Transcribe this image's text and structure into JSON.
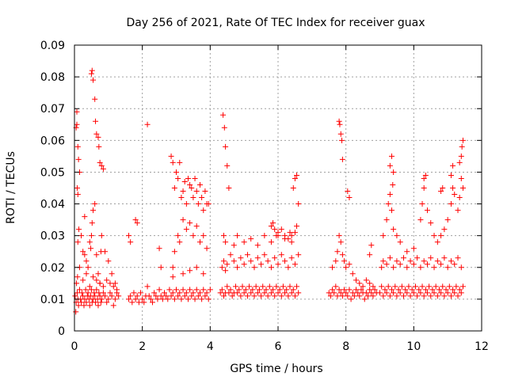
{
  "chart_data": {
    "type": "scatter",
    "title": "Day 256 of 2021, Rate Of TEC Index for receiver guax",
    "xlabel": "GPS time / hours",
    "ylabel": "ROTI / TECUs",
    "xlim": [
      0,
      12
    ],
    "ylim": [
      0,
      0.09
    ],
    "xticks": [
      "0",
      "2",
      "4",
      "6",
      "8",
      "10",
      "12"
    ],
    "xtick_values": [
      0,
      2,
      4,
      6,
      8,
      10,
      12
    ],
    "yticks": [
      "0",
      "0.01",
      "0.02",
      "0.03",
      "0.04",
      "0.05",
      "0.06",
      "0.07",
      "0.08",
      "0.09"
    ],
    "ytick_values": [
      0,
      0.01,
      0.02,
      0.03,
      0.04,
      0.05,
      0.06,
      0.07,
      0.08,
      0.09
    ],
    "grid": true,
    "marker": "+",
    "marker_color": "#ff0000",
    "series": [
      {
        "name": "ROTI",
        "x": [
          0.02,
          0.05,
          0.08,
          0.1,
          0.12,
          0.15,
          0.18,
          0.2,
          0.22,
          0.25,
          0.28,
          0.3,
          0.33,
          0.35,
          0.38,
          0.4,
          0.43,
          0.45,
          0.48,
          0.5,
          0.52,
          0.55,
          0.58,
          0.6,
          0.62,
          0.65,
          0.68,
          0.7,
          0.72,
          0.75,
          0.78,
          0.8,
          0.85,
          0.9,
          0.95,
          1.0,
          1.05,
          1.1,
          1.15,
          1.2,
          1.25,
          1.3,
          0.05,
          0.07,
          0.1,
          0.12,
          0.15,
          0.08,
          0.1,
          0.13,
          0.2,
          0.25,
          0.3,
          0.35,
          0.4,
          0.45,
          0.5,
          0.52,
          0.55,
          0.6,
          0.62,
          0.65,
          0.7,
          0.72,
          0.75,
          0.8,
          0.85,
          0.9,
          1.0,
          1.1,
          1.2,
          0.07,
          0.1,
          0.3,
          0.48,
          0.5,
          0.52,
          0.55,
          0.6,
          0.65,
          0.7,
          0.75,
          0.78,
          0.8,
          0.04,
          0.06,
          0.09,
          0.15,
          0.25,
          0.35,
          0.45,
          0.55,
          0.65,
          0.75,
          0.85,
          0.95,
          1.05,
          1.15,
          1.25,
          1.6,
          1.65,
          1.7,
          1.75,
          1.8,
          1.85,
          1.9,
          1.95,
          2.0,
          2.05,
          2.1,
          1.6,
          1.65,
          1.8,
          1.85,
          2.15,
          2.2,
          2.25,
          2.3,
          2.35,
          2.4,
          2.45,
          2.5,
          2.55,
          2.6,
          2.65,
          2.7,
          2.75,
          2.8,
          2.85,
          2.9,
          2.95,
          3.0,
          3.05,
          3.1,
          3.15,
          3.2,
          3.25,
          3.3,
          3.35,
          3.4,
          3.45,
          3.5,
          3.55,
          3.6,
          3.65,
          3.7,
          3.75,
          3.8,
          3.85,
          3.9,
          3.95,
          4.0,
          2.15,
          2.5,
          2.55,
          2.85,
          2.9,
          2.95,
          3.0,
          3.05,
          3.1,
          3.15,
          3.2,
          3.25,
          3.3,
          3.35,
          3.4,
          3.45,
          3.5,
          3.55,
          3.6,
          3.65,
          3.7,
          3.75,
          3.8,
          3.85,
          3.9,
          3.95,
          2.9,
          2.95,
          3.05,
          3.1,
          3.2,
          3.3,
          3.4,
          3.5,
          3.6,
          3.7,
          3.8,
          3.9,
          2.9,
          3.2,
          3.4,
          3.6,
          3.8,
          4.3,
          4.35,
          4.4,
          4.45,
          4.5,
          4.55,
          4.6,
          4.65,
          4.7,
          4.75,
          4.8,
          4.85,
          4.9,
          4.95,
          5.0,
          5.05,
          5.1,
          5.15,
          5.2,
          5.25,
          5.3,
          5.35,
          5.4,
          5.45,
          5.5,
          5.55,
          5.6,
          5.65,
          5.7,
          5.75,
          5.8,
          5.85,
          5.9,
          5.95,
          6.0,
          6.05,
          6.1,
          6.15,
          6.2,
          6.25,
          6.3,
          6.35,
          6.4,
          6.45,
          6.5,
          6.55,
          6.6,
          4.35,
          4.4,
          4.45,
          4.5,
          4.6,
          4.7,
          4.8,
          4.9,
          5.0,
          5.1,
          5.2,
          5.3,
          5.4,
          5.5,
          5.6,
          5.7,
          5.8,
          5.9,
          6.0,
          6.1,
          6.2,
          6.3,
          6.4,
          6.5,
          6.6,
          4.4,
          4.45,
          4.7,
          4.8,
          5.0,
          5.2,
          5.4,
          5.6,
          5.8,
          6.0,
          6.2,
          6.4,
          6.5,
          6.55,
          4.38,
          4.42,
          4.45,
          4.5,
          4.55,
          6.45,
          6.5,
          6.55,
          6.6,
          5.8,
          5.85,
          5.9,
          5.95,
          6.0,
          6.1,
          6.2,
          6.3,
          6.35,
          6.4,
          7.5,
          7.55,
          7.6,
          7.65,
          7.7,
          7.75,
          7.8,
          7.85,
          7.9,
          7.95,
          8.0,
          8.05,
          8.1,
          8.15,
          8.2,
          8.25,
          8.3,
          8.35,
          8.4,
          8.45,
          8.5,
          8.55,
          8.6,
          8.65,
          8.7,
          8.75,
          8.8,
          8.85,
          8.9,
          7.6,
          7.7,
          7.75,
          7.8,
          7.85,
          7.9,
          7.95,
          8.0,
          8.1,
          8.2,
          8.3,
          8.4,
          8.5,
          8.6,
          8.7,
          8.8,
          7.8,
          7.82,
          7.85,
          7.88,
          7.9,
          8.05,
          8.1,
          8.7,
          8.75,
          9.0,
          9.05,
          9.1,
          9.15,
          9.2,
          9.25,
          9.3,
          9.35,
          9.4,
          9.45,
          9.5,
          9.55,
          9.6,
          9.65,
          9.7,
          9.75,
          9.8,
          9.85,
          9.9,
          9.95,
          10.0,
          10.05,
          10.1,
          10.15,
          10.2,
          10.25,
          10.3,
          10.35,
          10.4,
          10.45,
          10.5,
          10.55,
          10.6,
          10.65,
          10.7,
          10.75,
          10.8,
          10.85,
          10.9,
          10.95,
          11.0,
          11.05,
          11.1,
          11.15,
          11.2,
          11.25,
          11.3,
          11.35,
          11.4,
          11.45,
          9.05,
          9.1,
          9.2,
          9.3,
          9.4,
          9.5,
          9.6,
          9.7,
          9.8,
          9.9,
          10.0,
          10.1,
          10.2,
          10.3,
          10.4,
          10.5,
          10.6,
          10.7,
          10.8,
          10.9,
          11.0,
          11.1,
          11.2,
          11.3,
          11.4,
          9.1,
          9.2,
          9.25,
          9.3,
          9.35,
          9.4,
          9.5,
          9.6,
          9.8,
          10.0,
          10.2,
          10.25,
          10.3,
          10.4,
          10.5,
          10.6,
          10.7,
          10.8,
          10.9,
          11.0,
          11.1,
          11.15,
          11.2,
          11.3,
          11.35,
          11.4,
          11.45,
          9.3,
          9.35,
          9.4,
          9.38,
          10.3,
          10.35,
          10.8,
          10.85,
          11.1,
          11.15,
          11.35,
          11.4,
          11.42,
          11.45
        ],
        "y": [
          0.011,
          0.009,
          0.012,
          0.01,
          0.008,
          0.013,
          0.01,
          0.009,
          0.012,
          0.011,
          0.008,
          0.01,
          0.013,
          0.009,
          0.011,
          0.012,
          0.01,
          0.008,
          0.011,
          0.013,
          0.009,
          0.01,
          0.012,
          0.011,
          0.009,
          0.013,
          0.01,
          0.008,
          0.012,
          0.011,
          0.009,
          0.01,
          0.012,
          0.011,
          0.009,
          0.01,
          0.012,
          0.011,
          0.008,
          0.01,
          0.012,
          0.011,
          0.064,
          0.065,
          0.058,
          0.054,
          0.05,
          0.045,
          0.028,
          0.032,
          0.03,
          0.025,
          0.024,
          0.022,
          0.02,
          0.028,
          0.081,
          0.082,
          0.079,
          0.073,
          0.066,
          0.062,
          0.061,
          0.058,
          0.053,
          0.052,
          0.051,
          0.025,
          0.022,
          0.018,
          0.015,
          0.069,
          0.043,
          0.036,
          0.026,
          0.03,
          0.034,
          0.038,
          0.04,
          0.024,
          0.018,
          0.015,
          0.025,
          0.03,
          0.006,
          0.015,
          0.017,
          0.02,
          0.016,
          0.018,
          0.014,
          0.017,
          0.016,
          0.015,
          0.014,
          0.016,
          0.015,
          0.014,
          0.013,
          0.01,
          0.011,
          0.009,
          0.012,
          0.01,
          0.011,
          0.009,
          0.012,
          0.01,
          0.009,
          0.011,
          0.03,
          0.028,
          0.035,
          0.034,
          0.014,
          0.011,
          0.01,
          0.009,
          0.012,
          0.011,
          0.01,
          0.013,
          0.011,
          0.01,
          0.012,
          0.011,
          0.01,
          0.013,
          0.011,
          0.012,
          0.01,
          0.013,
          0.011,
          0.012,
          0.01,
          0.013,
          0.011,
          0.012,
          0.01,
          0.013,
          0.011,
          0.012,
          0.01,
          0.013,
          0.011,
          0.012,
          0.01,
          0.013,
          0.011,
          0.012,
          0.01,
          0.013,
          0.065,
          0.026,
          0.02,
          0.055,
          0.053,
          0.045,
          0.05,
          0.048,
          0.053,
          0.042,
          0.044,
          0.047,
          0.04,
          0.048,
          0.046,
          0.045,
          0.042,
          0.048,
          0.044,
          0.04,
          0.046,
          0.042,
          0.038,
          0.044,
          0.04,
          0.04,
          0.02,
          0.025,
          0.03,
          0.028,
          0.035,
          0.032,
          0.034,
          0.03,
          0.033,
          0.028,
          0.03,
          0.026,
          0.017,
          0.018,
          0.019,
          0.02,
          0.018,
          0.012,
          0.013,
          0.011,
          0.012,
          0.014,
          0.012,
          0.013,
          0.011,
          0.012,
          0.014,
          0.012,
          0.013,
          0.011,
          0.014,
          0.012,
          0.013,
          0.011,
          0.014,
          0.012,
          0.013,
          0.011,
          0.014,
          0.012,
          0.013,
          0.011,
          0.014,
          0.012,
          0.013,
          0.011,
          0.014,
          0.012,
          0.013,
          0.011,
          0.014,
          0.012,
          0.013,
          0.011,
          0.014,
          0.012,
          0.013,
          0.011,
          0.014,
          0.012,
          0.013,
          0.011,
          0.014,
          0.012,
          0.02,
          0.022,
          0.019,
          0.021,
          0.024,
          0.022,
          0.02,
          0.023,
          0.021,
          0.024,
          0.022,
          0.02,
          0.023,
          0.021,
          0.024,
          0.022,
          0.02,
          0.023,
          0.021,
          0.024,
          0.022,
          0.02,
          0.023,
          0.021,
          0.024,
          0.03,
          0.028,
          0.027,
          0.03,
          0.028,
          0.029,
          0.027,
          0.03,
          0.028,
          0.03,
          0.029,
          0.028,
          0.031,
          0.033,
          0.068,
          0.064,
          0.058,
          0.052,
          0.045,
          0.045,
          0.048,
          0.049,
          0.04,
          0.033,
          0.034,
          0.032,
          0.03,
          0.031,
          0.032,
          0.03,
          0.029,
          0.031,
          0.03,
          0.012,
          0.011,
          0.013,
          0.012,
          0.014,
          0.011,
          0.013,
          0.012,
          0.011,
          0.013,
          0.012,
          0.011,
          0.013,
          0.01,
          0.012,
          0.011,
          0.013,
          0.012,
          0.011,
          0.013,
          0.012,
          0.01,
          0.012,
          0.011,
          0.013,
          0.012,
          0.011,
          0.013,
          0.012,
          0.02,
          0.022,
          0.025,
          0.03,
          0.028,
          0.024,
          0.022,
          0.02,
          0.021,
          0.018,
          0.016,
          0.015,
          0.014,
          0.016,
          0.015,
          0.014,
          0.066,
          0.065,
          0.062,
          0.06,
          0.054,
          0.044,
          0.042,
          0.024,
          0.027,
          0.012,
          0.014,
          0.011,
          0.013,
          0.012,
          0.014,
          0.011,
          0.013,
          0.012,
          0.014,
          0.011,
          0.013,
          0.012,
          0.014,
          0.011,
          0.013,
          0.012,
          0.014,
          0.011,
          0.013,
          0.012,
          0.014,
          0.011,
          0.013,
          0.012,
          0.014,
          0.011,
          0.013,
          0.012,
          0.014,
          0.011,
          0.013,
          0.012,
          0.014,
          0.011,
          0.013,
          0.012,
          0.014,
          0.011,
          0.013,
          0.012,
          0.014,
          0.011,
          0.013,
          0.012,
          0.014,
          0.011,
          0.013,
          0.012,
          0.014,
          0.02,
          0.022,
          0.021,
          0.023,
          0.02,
          0.022,
          0.021,
          0.023,
          0.02,
          0.022,
          0.021,
          0.023,
          0.02,
          0.022,
          0.021,
          0.023,
          0.02,
          0.022,
          0.021,
          0.023,
          0.02,
          0.022,
          0.021,
          0.023,
          0.02,
          0.03,
          0.035,
          0.04,
          0.043,
          0.038,
          0.032,
          0.03,
          0.028,
          0.025,
          0.026,
          0.035,
          0.04,
          0.045,
          0.038,
          0.034,
          0.03,
          0.028,
          0.03,
          0.032,
          0.035,
          0.04,
          0.045,
          0.043,
          0.038,
          0.042,
          0.048,
          0.045,
          0.052,
          0.055,
          0.05,
          0.046,
          0.048,
          0.049,
          0.044,
          0.045,
          0.049,
          0.052,
          0.053,
          0.055,
          0.058,
          0.06
        ]
      }
    ]
  }
}
